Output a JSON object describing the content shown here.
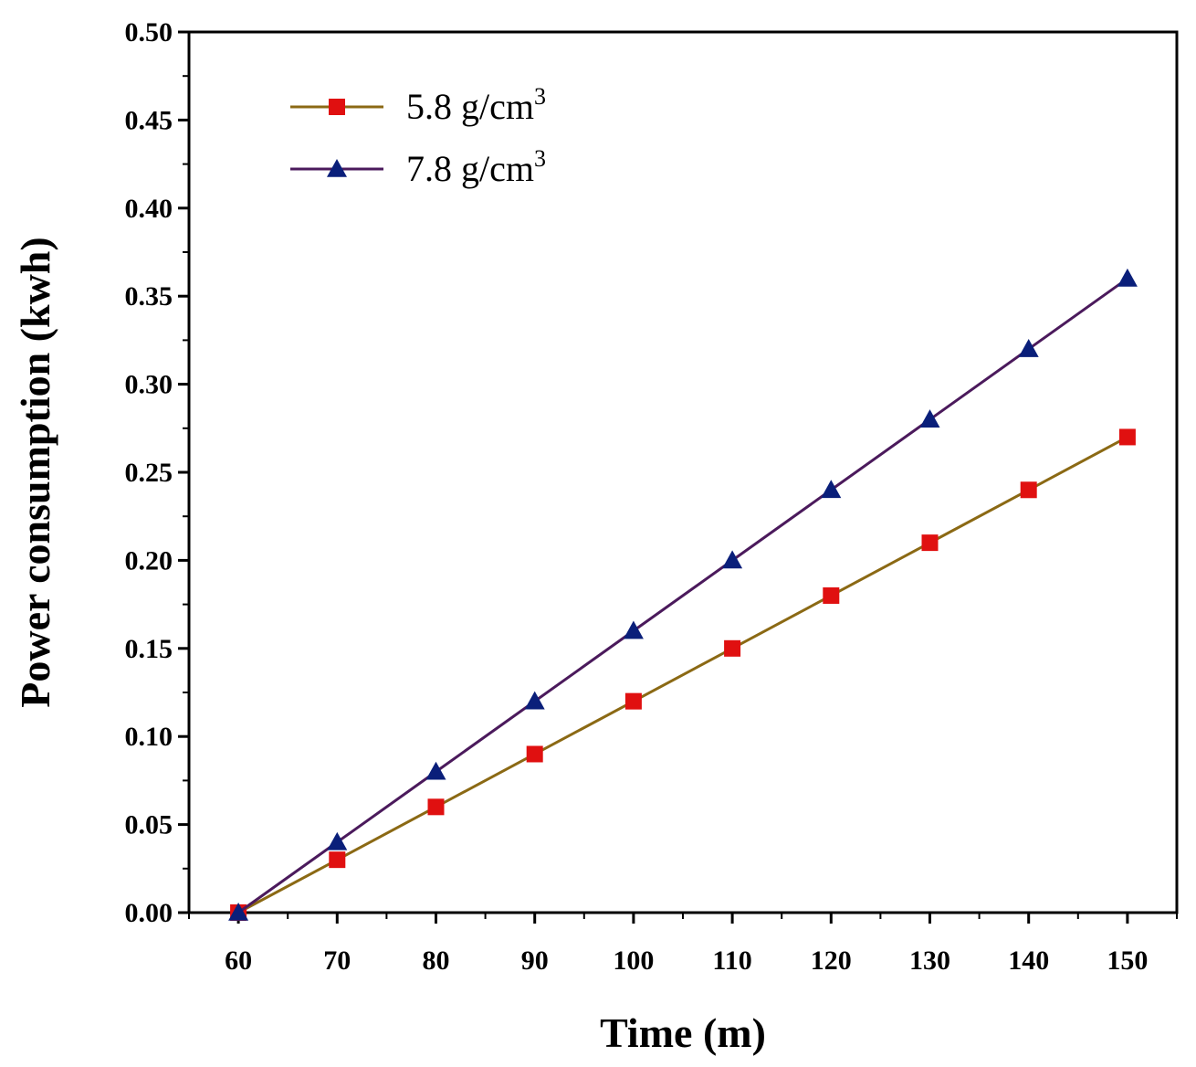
{
  "chart_data": {
    "type": "line",
    "title": "",
    "xlabel": "Time (m)",
    "ylabel": "Power consumption (kwh)",
    "x": [
      60,
      70,
      80,
      90,
      100,
      110,
      120,
      130,
      140,
      150
    ],
    "xlim": [
      55,
      155
    ],
    "ylim": [
      0,
      0.5
    ],
    "x_ticks": [
      "60",
      "70",
      "80",
      "90",
      "100",
      "110",
      "120",
      "130",
      "140",
      "150"
    ],
    "y_ticks": [
      "0.00",
      "0.05",
      "0.10",
      "0.15",
      "0.20",
      "0.25",
      "0.30",
      "0.35",
      "0.40",
      "0.45",
      "0.50"
    ],
    "grid": false,
    "legend_position": "top-left",
    "series": [
      {
        "name": "5.8 g/cm3",
        "label_main": "5.8 g/cm",
        "label_sup": "3",
        "line_color": "#8B6914",
        "marker_color": "#E01010",
        "marker": "square",
        "values": [
          0.0,
          0.03,
          0.06,
          0.09,
          0.12,
          0.15,
          0.18,
          0.21,
          0.24,
          0.27
        ]
      },
      {
        "name": "7.8 g/cm3",
        "label_main": "7.8 g/cm",
        "label_sup": "3",
        "line_color": "#4B1A5C",
        "marker_color": "#0A1F7A",
        "marker": "triangle",
        "values": [
          0.0,
          0.04,
          0.08,
          0.12,
          0.16,
          0.2,
          0.24,
          0.28,
          0.32,
          0.36
        ]
      }
    ]
  }
}
